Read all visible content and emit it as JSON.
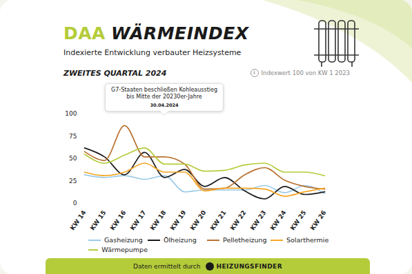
{
  "chart_data": {
    "type": "line",
    "brand": "DAA",
    "title": "WÄRMEINDEX",
    "subtitle": "Indexierte Entwicklung verbauter Heizsysteme",
    "period": "ZWEITES QUARTAL 2024",
    "note": "Indexwert 100 von KW 1 2023",
    "categories": [
      "KW 14",
      "KW 15",
      "KW 16",
      "KW 17",
      "KW 18",
      "KW 19",
      "KW 20",
      "KW 21",
      "KW 22",
      "KW 23",
      "KW 24",
      "KW 25",
      "KW 26"
    ],
    "series": [
      {
        "name": "Gasheizung",
        "color": "#9ccbe8",
        "values": [
          32,
          29,
          31,
          27,
          31,
          13,
          15,
          15,
          15,
          20,
          12,
          20,
          11
        ]
      },
      {
        "name": "Ölheizung",
        "color": "#1a1a1a",
        "values": [
          62,
          52,
          32,
          57,
          29,
          38,
          19,
          29,
          14,
          5,
          19,
          10,
          13
        ]
      },
      {
        "name": "Pelletheizung",
        "color": "#b8712e",
        "values": [
          58,
          48,
          87,
          52,
          52,
          44,
          16,
          17,
          32,
          40,
          26,
          19,
          16
        ]
      },
      {
        "name": "Solarthermie",
        "color": "#f5a623",
        "values": [
          35,
          31,
          35,
          45,
          35,
          35,
          14,
          17,
          17,
          16,
          8,
          13,
          17
        ]
      },
      {
        "name": "Wärmepumpe",
        "color": "#b5cc3a",
        "values": [
          55,
          45,
          54,
          62,
          44,
          44,
          36,
          37,
          43,
          45,
          35,
          35,
          31
        ]
      }
    ],
    "ylim": [
      0,
      100
    ],
    "yticks": [
      0,
      25,
      50,
      75,
      100
    ],
    "grid": false,
    "legend": "bottom",
    "line_style": "smooth",
    "annotations": [
      {
        "text": "G7-Staaten beschließen Kohleausstieg bis Mitte der 20230er-Jahre",
        "date": "30.04.2024",
        "category": "KW 18"
      }
    ],
    "source": "Daten ermittelt durch",
    "source_name": "HEIZUNGSFINDER"
  }
}
